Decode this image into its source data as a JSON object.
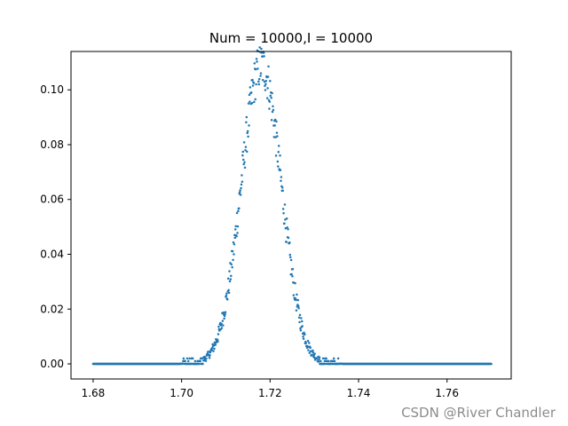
{
  "watermark": "CSDN @River Chandler",
  "chart_data": {
    "type": "scatter",
    "title": "Num = 10000,I = 10000",
    "xlabel": "",
    "ylabel": "",
    "xlim": [
      1.675,
      1.7745
    ],
    "ylim": [
      -0.0055,
      0.114
    ],
    "xticks": [
      1.68,
      1.7,
      1.72,
      1.74,
      1.76
    ],
    "xtick_labels": [
      "1.68",
      "1.70",
      "1.72",
      "1.74",
      "1.76"
    ],
    "yticks": [
      0.0,
      0.02,
      0.04,
      0.06,
      0.08,
      0.1
    ],
    "ytick_labels": [
      "0.00",
      "0.02",
      "0.04",
      "0.06",
      "0.08",
      "0.10"
    ],
    "grid": false,
    "legend": "none",
    "marker_color": "#1f77b4",
    "series": [
      {
        "x_range": [
          1.68,
          1.77
        ],
        "point_count": 1000,
        "distribution": "gaussian",
        "peak_x": 1.718,
        "peak_y": 0.109,
        "sigma": 0.0045
      }
    ]
  }
}
